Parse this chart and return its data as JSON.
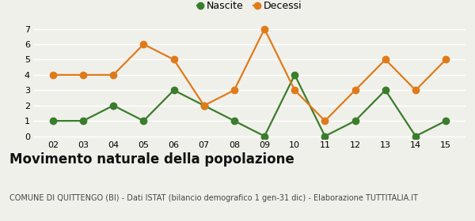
{
  "years": [
    "02",
    "03",
    "04",
    "05",
    "06",
    "07",
    "08",
    "09",
    "10",
    "11",
    "12",
    "13",
    "14",
    "15"
  ],
  "nascite": [
    1,
    1,
    2,
    1,
    3,
    2,
    1,
    0,
    4,
    0,
    1,
    3,
    0,
    1
  ],
  "decessi": [
    4,
    4,
    4,
    6,
    5,
    2,
    3,
    7,
    3,
    1,
    3,
    5,
    3,
    5
  ],
  "nascite_color": "#3a7d2c",
  "decessi_color": "#e07b1a",
  "title": "Movimento naturale della popolazione",
  "subtitle": "COMUNE DI QUITTENGO (BI) - Dati ISTAT (bilancio demografico 1 gen-31 dic) - Elaborazione TUTTITALIA.IT",
  "legend_nascite": "Nascite",
  "legend_decessi": "Decessi",
  "ylim": [
    -0.2,
    7.3
  ],
  "yticks": [
    0,
    1,
    2,
    3,
    4,
    5,
    6,
    7
  ],
  "background_color": "#f0f0eb",
  "grid_color": "#ffffff",
  "title_fontsize": 12,
  "subtitle_fontsize": 7,
  "marker_size": 6,
  "line_width": 1.6
}
